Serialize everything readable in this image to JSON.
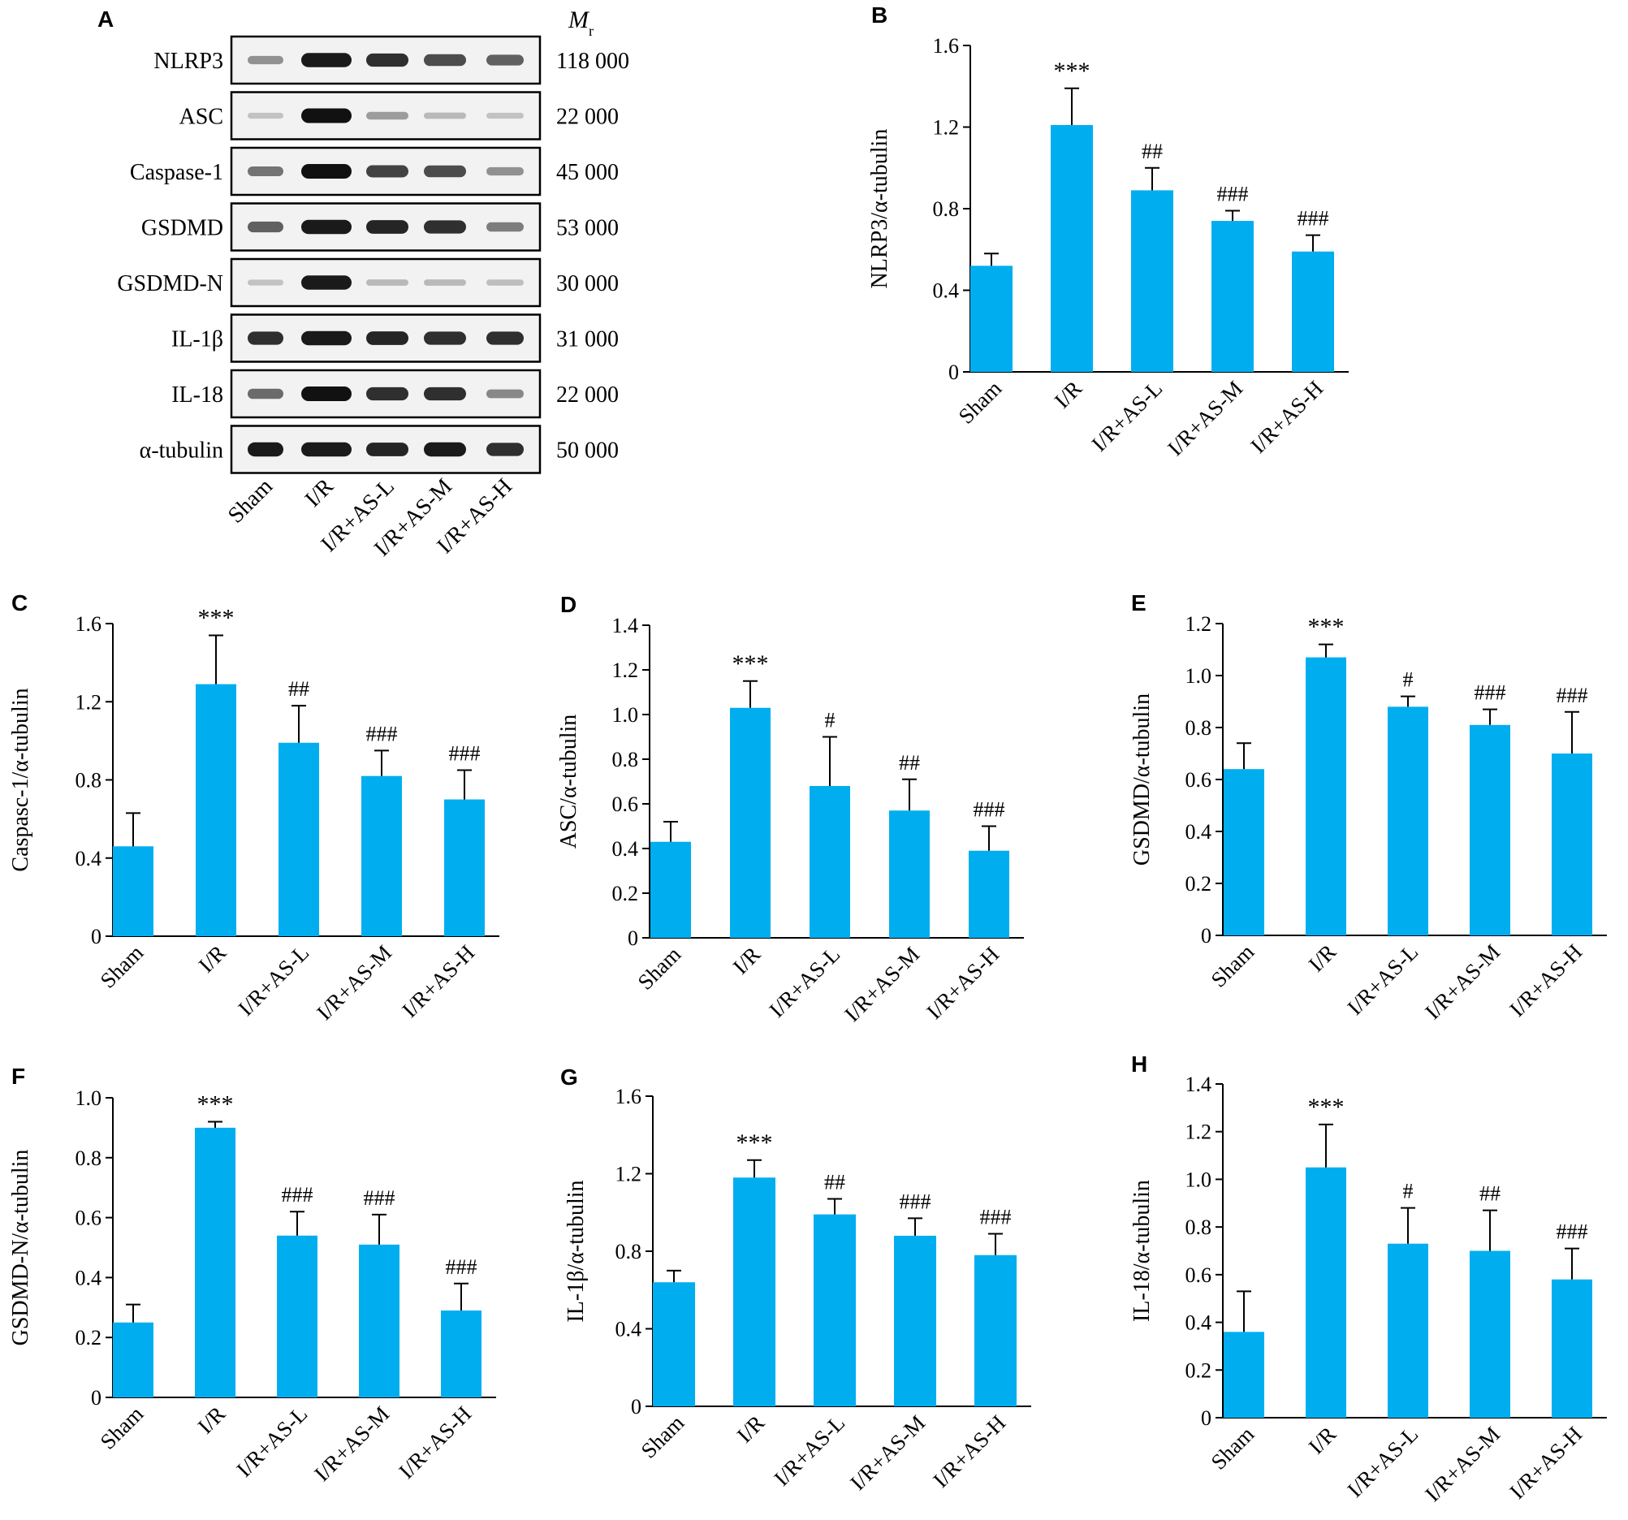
{
  "blot": {
    "letter": "A",
    "mr_label": "M",
    "mr_sub": "r",
    "rows": [
      {
        "protein": "NLRP3",
        "mr": "118 000",
        "intensity": [
          0.35,
          0.95,
          0.85,
          0.7,
          0.6
        ]
      },
      {
        "protein": "ASC",
        "mr": "22 000",
        "intensity": [
          0.1,
          1.0,
          0.3,
          0.15,
          0.1
        ]
      },
      {
        "protein": "Caspase-1",
        "mr": "45 000",
        "intensity": [
          0.5,
          1.0,
          0.75,
          0.7,
          0.35
        ]
      },
      {
        "protein": "GSDMD",
        "mr": "53 000",
        "intensity": [
          0.6,
          0.95,
          0.9,
          0.85,
          0.45
        ]
      },
      {
        "protein": "GSDMD-N",
        "mr": "30 000",
        "intensity": [
          0.1,
          0.95,
          0.15,
          0.15,
          0.12
        ]
      },
      {
        "protein": "IL-1β",
        "mr": "31 000",
        "intensity": [
          0.85,
          0.95,
          0.9,
          0.85,
          0.85
        ]
      },
      {
        "protein": "IL-18",
        "mr": "22 000",
        "intensity": [
          0.55,
          1.0,
          0.85,
          0.85,
          0.4
        ]
      },
      {
        "protein": "α-tubulin",
        "mr": "50 000",
        "intensity": [
          0.95,
          0.95,
          0.9,
          0.95,
          0.85
        ]
      }
    ],
    "groups": [
      "Sham",
      "I/R",
      "I/R+AS-L",
      "I/R+AS-M",
      "I/R+AS-H"
    ]
  },
  "colors": {
    "bar": "#00aeef",
    "band": "#111111"
  },
  "chart_data": [
    {
      "id": "B",
      "type": "bar",
      "ylabel": "NLRP3/α-tubulin",
      "ylim": [
        0,
        1.6
      ],
      "yticks": [
        "0",
        "0.4",
        "0.8",
        "1.2",
        "1.6"
      ],
      "categories": [
        "Sham",
        "I/R",
        "I/R+AS-L",
        "I/R+AS-M",
        "I/R+AS-H"
      ],
      "values": [
        0.52,
        1.21,
        0.89,
        0.74,
        0.59
      ],
      "errors": [
        0.06,
        0.18,
        0.11,
        0.05,
        0.08
      ],
      "annotations": [
        "",
        "***",
        "##",
        "###",
        "###"
      ]
    },
    {
      "id": "C",
      "type": "bar",
      "ylabel": "Caspasc-1/α-tubulin",
      "ylim": [
        0,
        1.6
      ],
      "yticks": [
        "0",
        "0.4",
        "0.8",
        "1.2",
        "1.6"
      ],
      "categories": [
        "Sham",
        "I/R",
        "I/R+AS-L",
        "I/R+AS-M",
        "I/R+AS-H"
      ],
      "values": [
        0.46,
        1.29,
        0.99,
        0.82,
        0.7
      ],
      "errors": [
        0.17,
        0.25,
        0.19,
        0.13,
        0.15
      ],
      "annotations": [
        "",
        "***",
        "##",
        "###",
        "###"
      ]
    },
    {
      "id": "D",
      "type": "bar",
      "ylabel": "ASC/α-tubulin",
      "ylim": [
        0,
        1.4
      ],
      "yticks": [
        "0",
        "0.2",
        "0.4",
        "0.6",
        "0.8",
        "1.0",
        "1.2",
        "1.4"
      ],
      "categories": [
        "Sham",
        "I/R",
        "I/R+AS-L",
        "I/R+AS-M",
        "I/R+AS-H"
      ],
      "values": [
        0.43,
        1.03,
        0.68,
        0.57,
        0.39
      ],
      "errors": [
        0.09,
        0.12,
        0.22,
        0.14,
        0.11
      ],
      "annotations": [
        "",
        "***",
        "#",
        "##",
        "###"
      ]
    },
    {
      "id": "E",
      "type": "bar",
      "ylabel": "GSDMD/α-tubulin",
      "ylim": [
        0,
        1.2
      ],
      "yticks": [
        "0",
        "0.2",
        "0.4",
        "0.6",
        "0.8",
        "1.0",
        "1.2"
      ],
      "categories": [
        "Sham",
        "I/R",
        "I/R+AS-L",
        "I/R+AS-M",
        "I/R+AS-H"
      ],
      "values": [
        0.64,
        1.07,
        0.88,
        0.81,
        0.7
      ],
      "errors": [
        0.1,
        0.05,
        0.04,
        0.06,
        0.16
      ],
      "annotations": [
        "",
        "***",
        "#",
        "###",
        "###"
      ]
    },
    {
      "id": "F",
      "type": "bar",
      "ylabel": "GSDMD-N/α-tubulin",
      "ylim": [
        0,
        1.0
      ],
      "yticks": [
        "0",
        "0.2",
        "0.4",
        "0.6",
        "0.8",
        "1.0"
      ],
      "categories": [
        "Sham",
        "I/R",
        "I/R+AS-L",
        "I/R+AS-M",
        "I/R+AS-H"
      ],
      "values": [
        0.25,
        0.9,
        0.54,
        0.51,
        0.29
      ],
      "errors": [
        0.06,
        0.02,
        0.08,
        0.1,
        0.09
      ],
      "annotations": [
        "",
        "***",
        "###",
        "###",
        "###"
      ]
    },
    {
      "id": "G",
      "type": "bar",
      "ylabel": "IL-1β/α-tubulin",
      "ylim": [
        0,
        1.6
      ],
      "yticks": [
        "0",
        "0.4",
        "0.8",
        "1.2",
        "1.6"
      ],
      "categories": [
        "Sham",
        "I/R",
        "I/R+AS-L",
        "I/R+AS-M",
        "I/R+AS-H"
      ],
      "values": [
        0.64,
        1.18,
        0.99,
        0.88,
        0.78
      ],
      "errors": [
        0.06,
        0.09,
        0.08,
        0.09,
        0.11
      ],
      "annotations": [
        "",
        "***",
        "##",
        "###",
        "###"
      ]
    },
    {
      "id": "H",
      "type": "bar",
      "ylabel": "IL-18/α-tubulin",
      "ylim": [
        0,
        1.4
      ],
      "yticks": [
        "0",
        "0.2",
        "0.4",
        "0.6",
        "0.8",
        "1.0",
        "1.2",
        "1.4"
      ],
      "categories": [
        "Sham",
        "I/R",
        "I/R+AS-L",
        "I/R+AS-M",
        "I/R+AS-H"
      ],
      "values": [
        0.36,
        1.05,
        0.73,
        0.7,
        0.58
      ],
      "errors": [
        0.17,
        0.18,
        0.15,
        0.17,
        0.13
      ],
      "annotations": [
        "",
        "***",
        "#",
        "##",
        "###"
      ]
    }
  ]
}
